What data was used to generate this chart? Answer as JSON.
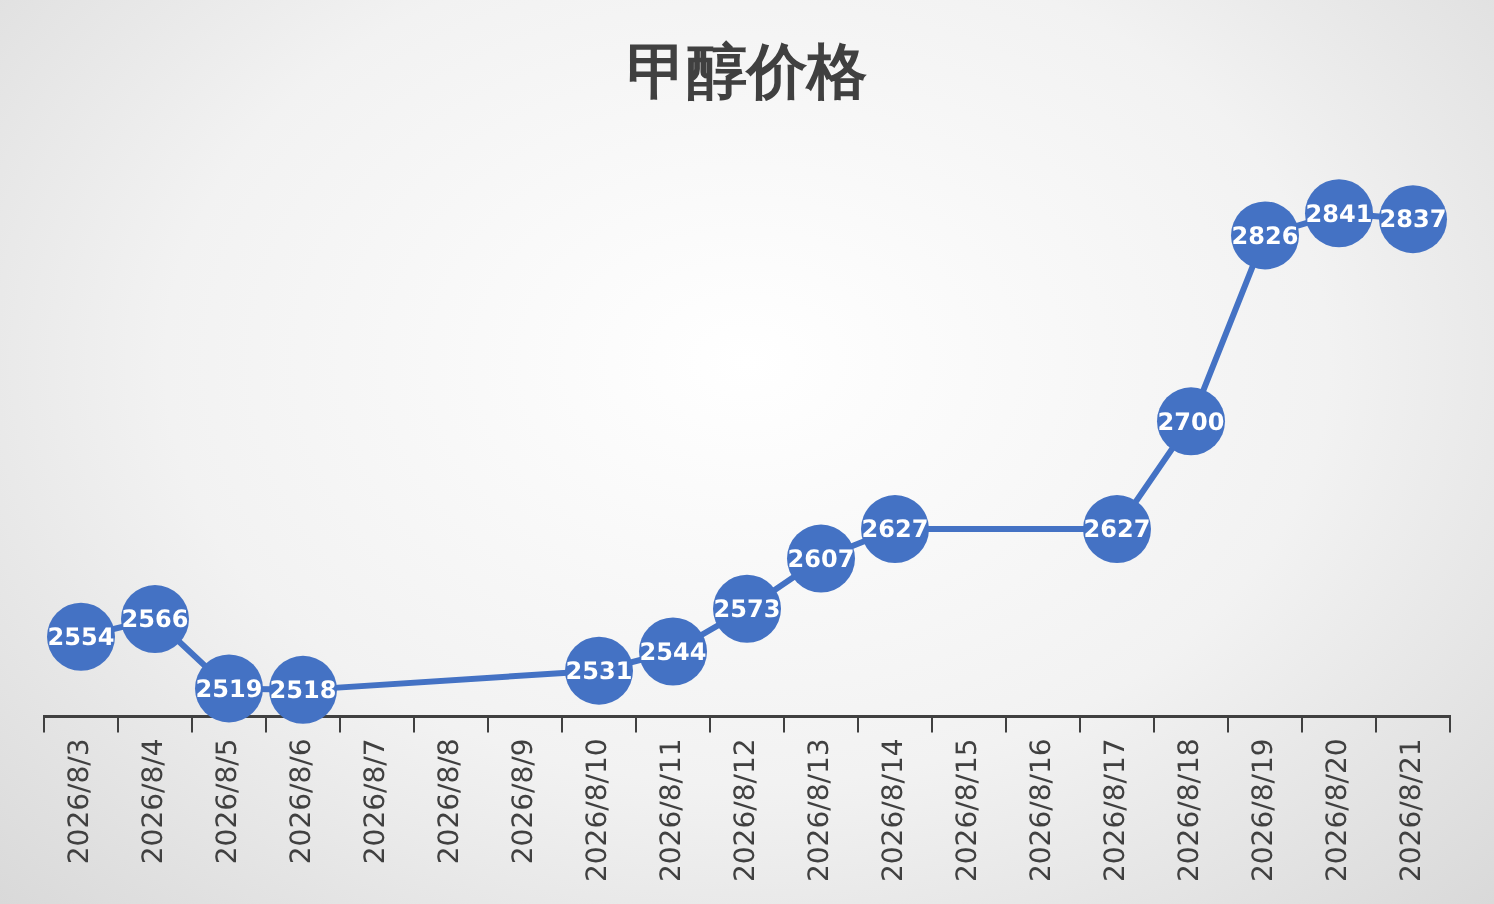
{
  "chart_data": {
    "type": "line",
    "title": "甲醇价格",
    "categories": [
      "2026/8/3",
      "2026/8/4",
      "2026/8/5",
      "2026/8/6",
      "2026/8/7",
      "2026/8/8",
      "2026/8/9",
      "2026/8/10",
      "2026/8/11",
      "2026/8/12",
      "2026/8/13",
      "2026/8/14",
      "2026/8/15",
      "2026/8/16",
      "2026/8/17",
      "2026/8/18",
      "2026/8/19",
      "2026/8/20",
      "2026/8/21"
    ],
    "series": [
      {
        "color": "#4472c4",
        "values": [
          2554,
          2566,
          2519,
          2518,
          null,
          null,
          null,
          2531,
          2544,
          2573,
          2607,
          2627,
          null,
          null,
          2627,
          2700,
          2826,
          2841,
          2837
        ]
      }
    ],
    "data_labels": true,
    "marker": "circle",
    "line_style": "solid",
    "grid": false,
    "legend": false
  }
}
